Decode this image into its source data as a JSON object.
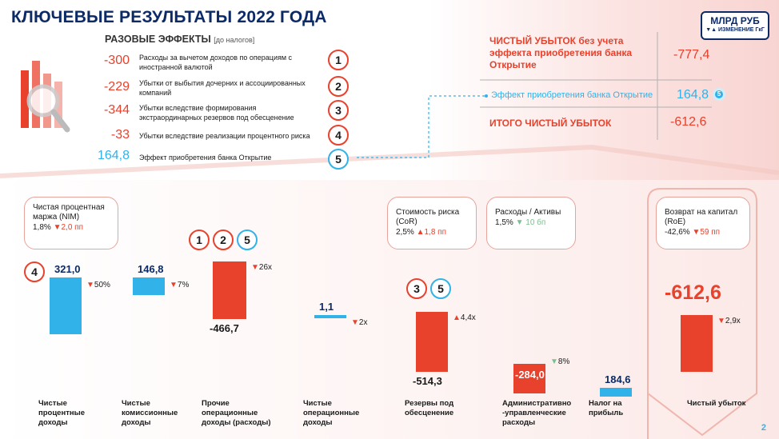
{
  "header": {
    "title": "КЛЮЧЕВЫЕ РЕЗУЛЬТАТЫ 2022 ГОДА",
    "unit_main": "МЛРД РУБ",
    "unit_sub": "▼▲ ИЗМЕНЕНИЕ ГкГ"
  },
  "one_off": {
    "title": "РАЗОВЫЕ ЭФФЕКТЫ",
    "title_note": "[до налогов]",
    "items": [
      {
        "value": "-300",
        "text": "Расходы за вычетом доходов по операциям с иностранной валютой",
        "num": "1"
      },
      {
        "value": "-229",
        "text": "Убытки от выбытия дочерних и ассоциированных компаний",
        "num": "2"
      },
      {
        "value": "-344",
        "text": "Убытки вследствие формирования экстраординарных резервов под обесценение",
        "num": "3"
      },
      {
        "value": "-33",
        "text": "Убытки вследствие реализации процентного риска",
        "num": "4"
      },
      {
        "value": "164,8",
        "text": "Эффект приобретения банка Открытие",
        "num": "5"
      }
    ]
  },
  "net_loss": {
    "ex_label": "ЧИСТЫЙ УБЫТОК без учета эффекта приобретения банка Открытие",
    "ex_value": "-777,4",
    "eff_label": "Эффект приобретения банка Открытие",
    "eff_value": "164,8",
    "eff_num": "5",
    "total_label": "ИТОГО ЧИСТЫЙ УБЫТОК",
    "total_value": "-612,6"
  },
  "kpis": {
    "nim": {
      "name": "Чистая процентная маржа (NIM)",
      "value": "1,8%",
      "change": "▼2,0 пп"
    },
    "cor": {
      "name": "Стоимость риска (CoR)",
      "value": "2,5%",
      "change": "▲1,8 пп"
    },
    "cti": {
      "name": "Расходы / Активы",
      "value": "1,5%",
      "change": "▼ 10 бп"
    },
    "roe": {
      "name": "Возврат на капитал (RoE)",
      "value": "-42,6%",
      "change": "▼59 пп"
    }
  },
  "chart_data": {
    "type": "bar",
    "title": "",
    "categories": [
      "Чистые процентные доходы",
      "Чистые комиссионные доходы",
      "Прочие операционные доходы (расходы)",
      "Чистые операционные доходы",
      "Резервы под обесценение",
      "Административно -управленческие расходы",
      "Налог на прибыль",
      "Чистый убыток"
    ],
    "values": [
      321.0,
      146.8,
      -466.7,
      1.1,
      -514.3,
      -284.0,
      184.6,
      -612.6
    ],
    "value_labels": [
      "321,0",
      "146,8",
      "-466,7",
      "1,1",
      "-514,3",
      "-284,0",
      "184,6",
      "-612,6"
    ],
    "changes": [
      "▼50%",
      "▼7%",
      "▼26x",
      "▼2x",
      "▲4,4x",
      "▼8%",
      "",
      "▼2,9x"
    ],
    "effect_markers": [
      [
        "4"
      ],
      [],
      [
        "1",
        "2",
        "5"
      ],
      [],
      [
        "3",
        "5"
      ],
      [],
      [],
      []
    ],
    "colors": {
      "positive": "#31b2e8",
      "negative": "#e8412c"
    }
  },
  "page_number": "2"
}
